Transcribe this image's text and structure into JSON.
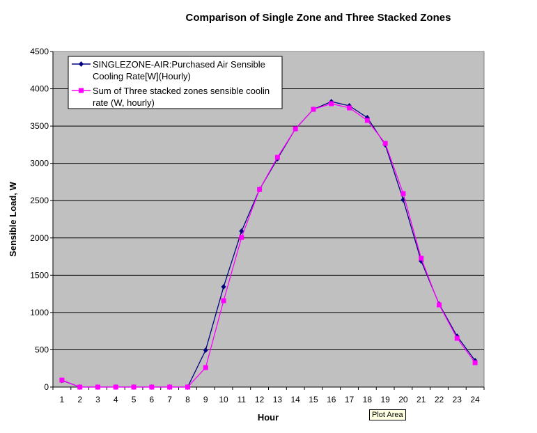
{
  "chart_data": {
    "type": "line",
    "title": "Comparison of Single Zone and Three Stacked Zones",
    "xlabel": "Hour",
    "ylabel": "Sensible Load, W",
    "categories": [
      "1",
      "2",
      "3",
      "4",
      "5",
      "6",
      "7",
      "8",
      "9",
      "10",
      "11",
      "12",
      "13",
      "14",
      "15",
      "16",
      "17",
      "18",
      "19",
      "20",
      "21",
      "22",
      "23",
      "24"
    ],
    "ylim": [
      0,
      4500
    ],
    "yticks": [
      "0",
      "500",
      "1000",
      "1500",
      "2000",
      "2500",
      "3000",
      "3500",
      "4000",
      "4500"
    ],
    "grid": "horizontal",
    "legend_position": "top-left",
    "series": [
      {
        "name": "SINGLEZONE-AIR:Purchased Air Sensible Cooling Rate[W](Hourly)",
        "color": "#000080",
        "marker": "diamond",
        "values": [
          90,
          0,
          0,
          0,
          0,
          0,
          0,
          0,
          495,
          1344,
          2091,
          2650,
          3062,
          3464,
          3725,
          3828,
          3772,
          3613,
          3249,
          2511,
          1690,
          1111,
          681,
          355
        ]
      },
      {
        "name": "Sum of Three stacked zones sensible cooling rate (W, hourly)",
        "color": "#ff00ff",
        "marker": "square",
        "values": [
          93,
          0,
          0,
          0,
          0,
          0,
          0,
          0,
          261,
          1158,
          2007,
          2650,
          3081,
          3464,
          3725,
          3800,
          3744,
          3576,
          3268,
          2595,
          1727,
          1102,
          654,
          327
        ]
      }
    ],
    "legend_labels": [
      [
        "SINGLEZONE-AIR:Purchased Air Sensible",
        "Cooling Rate[W](Hourly)"
      ],
      [
        "Sum of Three stacked zones sensible coolin",
        "rate (W, hourly)"
      ]
    ],
    "plot_area_color": "#c0c0c0"
  },
  "tooltip": "Plot Area"
}
